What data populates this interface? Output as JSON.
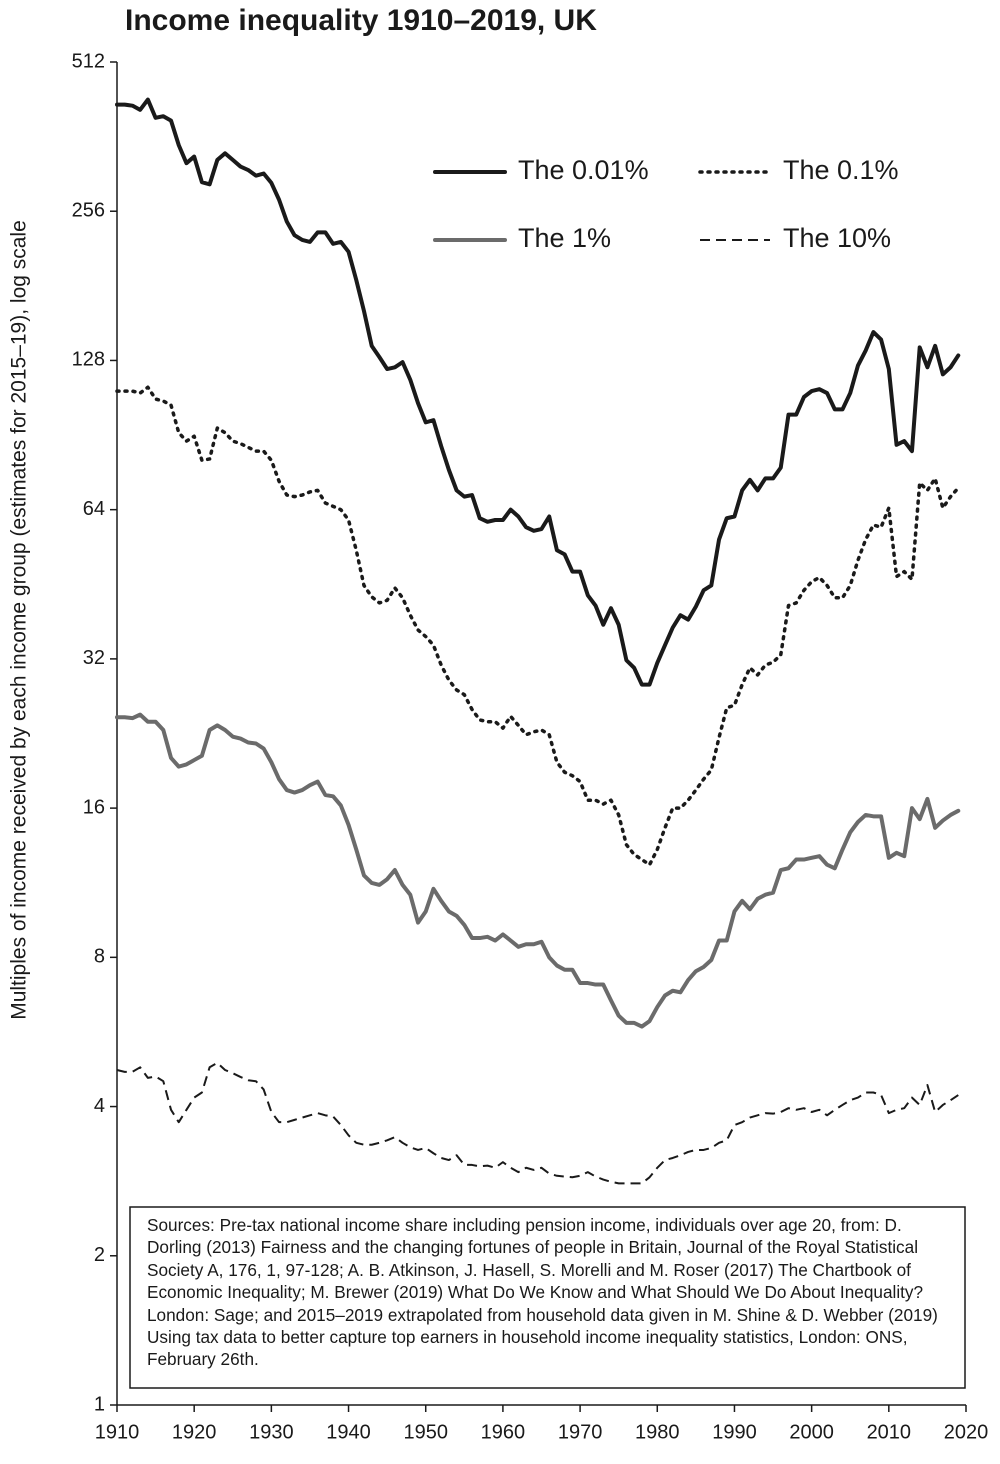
{
  "chart_data": {
    "type": "line",
    "title": "Income inequality 1910–2019, UK",
    "y_label": "Multiples of income received by each income group (estimates for 2015–19), log scale",
    "annotation": "Sources: Pre-tax national income share including pension income, individuals over age 20, from: D. Dorling (2013) Fairness and the changing fortunes of people in Britain, Journal of the Royal Statistical Society A, 176, 1, 97-128; A. B. Atkinson, J. Hasell, S. Morelli and M. Roser (2017) The Chartbook of Economic Inequality; M. Brewer (2019) What Do We Know and What Should We Do About Inequality? London: Sage; and 2015–2019 extrapolated from household data given in M. Shine & D. Webber (2019) Using tax data to better capture top earners in household income inequality statistics, London: ONS, February 26th.",
    "y_scale": "log",
    "legend": "top-right",
    "xlim": [
      1910,
      2020
    ],
    "ylim": [
      1,
      512
    ],
    "xticks": [
      1910,
      1920,
      1930,
      1940,
      1950,
      1960,
      1970,
      1980,
      1990,
      2000,
      2010,
      2020
    ],
    "yticks": [
      1,
      2,
      4,
      8,
      16,
      32,
      64,
      128,
      256,
      512
    ],
    "x": [
      1910,
      1911,
      1912,
      1913,
      1914,
      1915,
      1916,
      1917,
      1918,
      1919,
      1920,
      1921,
      1922,
      1923,
      1924,
      1925,
      1926,
      1927,
      1928,
      1929,
      1930,
      1931,
      1932,
      1933,
      1934,
      1935,
      1936,
      1937,
      1938,
      1939,
      1940,
      1941,
      1942,
      1943,
      1944,
      1945,
      1946,
      1947,
      1948,
      1949,
      1950,
      1951,
      1952,
      1953,
      1954,
      1955,
      1956,
      1957,
      1958,
      1959,
      1960,
      1961,
      1962,
      1963,
      1964,
      1965,
      1966,
      1967,
      1968,
      1969,
      1970,
      1971,
      1972,
      1973,
      1974,
      1975,
      1976,
      1977,
      1978,
      1979,
      1980,
      1981,
      1982,
      1983,
      1984,
      1985,
      1986,
      1987,
      1988,
      1989,
      1990,
      1991,
      1992,
      1993,
      1994,
      1995,
      1996,
      1997,
      1998,
      1999,
      2000,
      2001,
      2002,
      2003,
      2004,
      2005,
      2006,
      2007,
      2008,
      2009,
      2010,
      2011,
      2012,
      2013,
      2014,
      2015,
      2016,
      2017,
      2018,
      2019
    ],
    "series": [
      {
        "name": "The 0.01%",
        "color": "#1a1a1a",
        "style": "solid",
        "values": [
          420,
          420,
          418,
          410,
          430,
          395,
          398,
          390,
          348,
          320,
          330,
          293,
          290,
          325,
          335,
          325,
          315,
          310,
          302,
          305,
          292,
          270,
          244,
          229,
          224,
          222,
          232,
          232,
          220,
          222,
          212,
          186,
          161,
          137,
          130,
          123,
          124,
          127,
          117,
          105,
          96,
          97,
          86,
          77,
          70,
          68,
          68.5,
          61.5,
          60.5,
          61,
          61,
          64,
          62,
          59,
          58,
          58.5,
          62,
          53,
          52,
          48,
          48,
          43,
          41,
          37.5,
          40.5,
          37.5,
          31.8,
          30.7,
          28.4,
          28.4,
          31.4,
          34.1,
          37,
          39.2,
          38.4,
          40.8,
          44,
          45,
          55.7,
          61.5,
          62,
          70,
          73.5,
          70,
          74,
          74,
          77.8,
          99.5,
          99.5,
          108,
          111,
          112,
          110,
          102,
          102,
          110,
          125,
          134,
          146,
          141,
          123,
          86.5,
          88,
          84,
          136,
          124,
          137,
          120,
          124,
          131
        ]
      },
      {
        "name": "The 0.1%",
        "color": "#1a1a1a",
        "style": "dotted",
        "values": [
          111,
          111,
          111,
          110,
          113,
          107,
          106,
          104,
          91.5,
          88,
          90,
          80.5,
          81,
          93.5,
          91.5,
          88,
          87,
          85.5,
          84,
          84,
          80.5,
          73,
          68.5,
          68,
          68.5,
          69.5,
          70,
          66,
          65,
          64,
          61,
          53,
          45,
          42.7,
          41.5,
          42,
          44.5,
          42.5,
          39.2,
          36.6,
          35.5,
          34.1,
          31.1,
          29,
          27.7,
          27.1,
          25.3,
          24.1,
          23.9,
          23.9,
          23.2,
          24.5,
          23.5,
          22.5,
          22.8,
          23,
          22.5,
          19.8,
          18.9,
          18.6,
          18.1,
          16.6,
          16.6,
          16.3,
          16.6,
          15.5,
          13.5,
          12.9,
          12.6,
          12.3,
          13.2,
          14.6,
          16,
          16,
          16.6,
          17.4,
          18.3,
          19.1,
          22.2,
          25.5,
          25.8,
          28.4,
          30.7,
          29.7,
          31.1,
          31.5,
          32.6,
          41,
          41.5,
          44,
          45.8,
          46.7,
          45,
          42.5,
          42.5,
          45,
          50.6,
          55.7,
          59.6,
          59,
          64.5,
          46.9,
          48,
          46.3,
          72.5,
          70,
          74,
          64.5,
          68,
          70.8
        ]
      },
      {
        "name": "The 1%",
        "color": "#6b6b6b",
        "style": "solid",
        "values": [
          24.4,
          24.4,
          24.3,
          24.7,
          23.9,
          23.9,
          23,
          20.2,
          19.4,
          19.6,
          20,
          20.4,
          23,
          23.5,
          23,
          22.3,
          22.1,
          21.7,
          21.6,
          21.1,
          19.8,
          18.3,
          17.4,
          17.2,
          17.4,
          17.8,
          18.1,
          17,
          16.9,
          16.2,
          14.8,
          13.2,
          11.7,
          11.3,
          11.2,
          11.5,
          12,
          11.2,
          10.7,
          9.4,
          9.9,
          11,
          10.4,
          9.9,
          9.7,
          9.3,
          8.75,
          8.75,
          8.8,
          8.65,
          8.9,
          8.65,
          8.4,
          8.5,
          8.5,
          8.6,
          8,
          7.7,
          7.55,
          7.55,
          7.1,
          7.1,
          7.05,
          7.05,
          6.55,
          6.1,
          5.9,
          5.9,
          5.8,
          5.95,
          6.35,
          6.7,
          6.85,
          6.8,
          7.2,
          7.5,
          7.65,
          7.9,
          8.65,
          8.65,
          9.9,
          10.4,
          10,
          10.5,
          10.7,
          10.8,
          12,
          12.1,
          12.6,
          12.6,
          12.7,
          12.8,
          12.3,
          12.1,
          13.2,
          14.3,
          15,
          15.5,
          15.4,
          15.4,
          12.7,
          13,
          12.8,
          16,
          15.2,
          16.7,
          14.6,
          15.1,
          15.5,
          15.8
        ]
      },
      {
        "name": "The 10%",
        "color": "#1a1a1a",
        "style": "dashed",
        "values": [
          4.74,
          4.7,
          4.7,
          4.8,
          4.57,
          4.6,
          4.5,
          3.94,
          3.72,
          3.94,
          4.17,
          4.27,
          4.8,
          4.9,
          4.74,
          4.67,
          4.59,
          4.52,
          4.5,
          4.33,
          3.9,
          3.72,
          3.72,
          3.76,
          3.8,
          3.84,
          3.88,
          3.84,
          3.82,
          3.67,
          3.5,
          3.38,
          3.35,
          3.35,
          3.38,
          3.42,
          3.47,
          3.38,
          3.31,
          3.27,
          3.3,
          3.22,
          3.15,
          3.12,
          3.19,
          3.05,
          3.05,
          3.03,
          3.04,
          3.01,
          3.09,
          3.01,
          2.95,
          3.01,
          2.98,
          3.01,
          2.93,
          2.9,
          2.89,
          2.88,
          2.9,
          2.95,
          2.89,
          2.85,
          2.82,
          2.8,
          2.8,
          2.8,
          2.8,
          2.88,
          3.01,
          3.12,
          3.15,
          3.19,
          3.24,
          3.27,
          3.27,
          3.3,
          3.38,
          3.42,
          3.67,
          3.72,
          3.8,
          3.84,
          3.88,
          3.87,
          3.9,
          3.97,
          3.94,
          3.97,
          3.9,
          3.94,
          3.84,
          3.94,
          4.03,
          4.12,
          4.17,
          4.27,
          4.27,
          4.22,
          3.88,
          3.94,
          3.97,
          4.17,
          4.03,
          4.42,
          3.9,
          4.03,
          4.12,
          4.22
        ]
      }
    ]
  }
}
